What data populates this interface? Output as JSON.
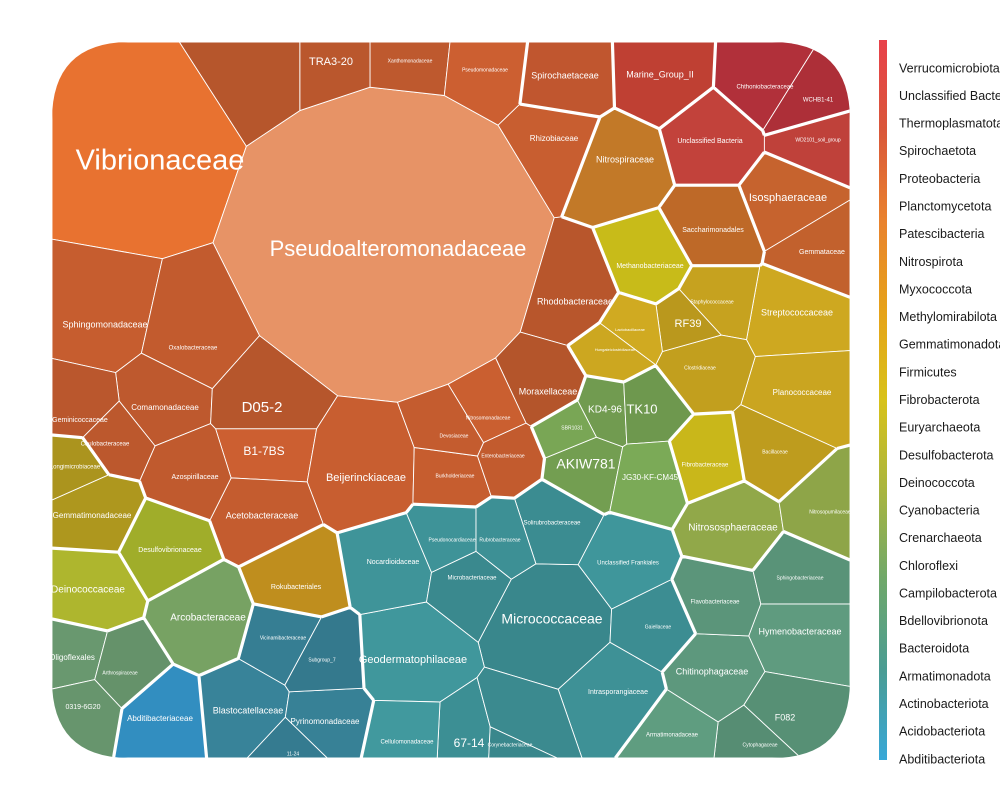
{
  "chart_data": {
    "type": "voronoi-treemap",
    "title": "",
    "legend": {
      "placement": "right",
      "style": "vertical color gradient bar",
      "entries": [
        "Verrucomicrobiota",
        "Unclassified Bacteria",
        "Thermoplasmatota",
        "Spirochaetota",
        "Proteobacteria",
        "Planctomycetota",
        "Patescibacteria",
        "Nitrospirota",
        "Myxococcota",
        "Methylomirabilota",
        "Gemmatimonadota",
        "Firmicutes",
        "Fibrobacterota",
        "Euryarchaeota",
        "Desulfobacterota",
        "Deinococcota",
        "Cyanobacteria",
        "Crenarchaeota",
        "Chloroflexi",
        "Campilobacterota",
        "Bdellovibrionota",
        "Bacteroidota",
        "Armatimonadota",
        "Actinobacteriota",
        "Acidobacteriota",
        "Abditibacteriota"
      ],
      "gradient_colors": [
        "#e8414a",
        "#d9573a",
        "#e9822e",
        "#e6a21a",
        "#d8c21a",
        "#a9b53f",
        "#6fa86a",
        "#4a9c93",
        "#38a8d8"
      ]
    },
    "phyla": [
      {
        "name": "Proteobacteria",
        "color": "#c05a2e",
        "families": [
          {
            "name": "Vibrionaceae",
            "color": "#e87230"
          },
          {
            "name": "Pseudoalteromonadaceae",
            "color": "#e79366"
          },
          {
            "name": "Sphingomonadaceae"
          },
          {
            "name": "Oxalobacteraceae"
          },
          {
            "name": "Comamonadaceae"
          },
          {
            "name": "Geminicoccaceae"
          },
          {
            "name": "D05-2"
          },
          {
            "name": "B1-7BS"
          },
          {
            "name": "Beijerinckiaceae"
          },
          {
            "name": "Acetobacteraceae"
          },
          {
            "name": "Azospirillaceae"
          },
          {
            "name": "Caulobacteraceae"
          },
          {
            "name": "Rhodobacteraceae"
          },
          {
            "name": "Moraxellaceae"
          },
          {
            "name": "Nitrosomonadaceae"
          },
          {
            "name": "Burkholderiaceae"
          },
          {
            "name": "Enterobacteriaceae"
          },
          {
            "name": "Xanthomonadaceae"
          },
          {
            "name": "TRA3-20"
          },
          {
            "name": "Rhizobiaceae"
          }
        ]
      },
      {
        "name": "Spirochaetota",
        "color": "#c0562f",
        "families": [
          {
            "name": "Spirochaetaceae"
          }
        ]
      },
      {
        "name": "Thermoplasmatota",
        "color": "#c34134",
        "families": [
          {
            "name": "Marine_Group_II"
          }
        ]
      },
      {
        "name": "Verrucomicrobiota",
        "color": "#b8323c",
        "families": [
          {
            "name": "Chthoniobacteraceae"
          }
        ]
      },
      {
        "name": "Unclassified Bacteria",
        "color": "#b93f38",
        "families": [
          {
            "name": "Unclassified Bacteria"
          }
        ]
      },
      {
        "name": "Nitrospirota",
        "color": "#c07828",
        "families": [
          {
            "name": "Nitrospiraceae"
          }
        ]
      },
      {
        "name": "Planctomycetota",
        "color": "#c8642e",
        "families": [
          {
            "name": "Isosphaeraceae"
          },
          {
            "name": "Gemmataceae"
          }
        ]
      },
      {
        "name": "Patescibacteria",
        "color": "#c86f2a",
        "families": [
          {
            "name": "Saccharimonadales"
          }
        ]
      },
      {
        "name": "Euryarchaeota",
        "color": "#bdb018",
        "families": [
          {
            "name": "Methanobacteriaceae"
          }
        ]
      },
      {
        "name": "Firmicutes",
        "color": "#c6a21f",
        "families": [
          {
            "name": "Streptococcaceae"
          },
          {
            "name": "Planococcaceae"
          },
          {
            "name": "Staphylococcaceae"
          },
          {
            "name": "Bacillaceae"
          },
          {
            "name": "Clostridiaceae"
          },
          {
            "name": "RF39"
          }
        ]
      },
      {
        "name": "Fibrobacterota",
        "color": "#c7b51a",
        "families": [
          {
            "name": "Fibrobacteraceae"
          }
        ]
      },
      {
        "name": "Chloroflexi",
        "color": "#74a052",
        "families": [
          {
            "name": "AKIW781"
          },
          {
            "name": "KD4-96"
          },
          {
            "name": "TK10"
          },
          {
            "name": "JG30-KF-CM45"
          }
        ]
      },
      {
        "name": "Crenarchaeota",
        "color": "#8ea548",
        "families": [
          {
            "name": "Nitrososphaeraceae"
          }
        ]
      },
      {
        "name": "Gemmatimonadota",
        "color": "#b29a1f",
        "families": [
          {
            "name": "Gemmatimonadaceae"
          },
          {
            "name": "Longimicrobiaceae"
          }
        ]
      },
      {
        "name": "Desulfobacterota",
        "color": "#aab82d",
        "families": [
          {
            "name": "Desulfovibrionaceae"
          }
        ]
      },
      {
        "name": "Deinococcota",
        "color": "#a6ad2c",
        "families": [
          {
            "name": "Deinococcaceae"
          }
        ]
      },
      {
        "name": "Methylomirabilota",
        "color": "#b98a1d",
        "families": [
          {
            "name": "Rokubacteriales"
          }
        ]
      },
      {
        "name": "Campilobacterota",
        "color": "#76a062",
        "families": [
          {
            "name": "Arcobacteraceae"
          }
        ]
      },
      {
        "name": "Cyanobacteria",
        "color": "#6a9a70",
        "families": [
          {
            "name": "Oligoflexales"
          },
          {
            "name": "0319-6G20"
          }
        ]
      },
      {
        "name": "Actinobacteriota",
        "color": "#3d9095",
        "families": [
          {
            "name": "Micrococcaceae"
          },
          {
            "name": "Geodermatophilaceae"
          },
          {
            "name": "Nocardioidaceae"
          },
          {
            "name": "Intrasporangiaceae"
          },
          {
            "name": "67-14"
          },
          {
            "name": "Solirubrobacteraceae"
          },
          {
            "name": "Microbacteriaceae"
          },
          {
            "name": "Cellulomonadaceae"
          },
          {
            "name": "Unclassified Frankiales"
          },
          {
            "name": "Pseudonocardiaceae"
          },
          {
            "name": "Rubrobacteraceae"
          },
          {
            "name": "Gaiellaceae"
          }
        ]
      },
      {
        "name": "Bacteroidota",
        "color": "#5a9479",
        "families": [
          {
            "name": "Hymenobacteraceae"
          },
          {
            "name": "Chitinophagaceae"
          },
          {
            "name": "Flavobacteriaceae"
          },
          {
            "name": "Sphingobacteriaceae"
          },
          {
            "name": "F082"
          }
        ]
      },
      {
        "name": "Acidobacteriota",
        "color": "#367e93",
        "families": [
          {
            "name": "Blastocatellaceae"
          },
          {
            "name": "Pyrinomonadaceae"
          },
          {
            "name": "Vicinamibacteraceae"
          },
          {
            "name": "11-24"
          }
        ]
      },
      {
        "name": "Abditibacteriota",
        "color": "#2f86b5",
        "families": [
          {
            "name": "Abditibacteriaceae"
          }
        ]
      }
    ],
    "visible_labels": [
      "Vibrionaceae",
      "Pseudoalteromonadaceae",
      "Sphingomonadaceae",
      "D05-2",
      "B1-7BS",
      "Beijerinckiaceae",
      "Acetobacteraceae",
      "Rhodobacteraceae",
      "Moraxellaceae",
      "Oxalobacteraceae",
      "Comamonadaceae",
      "Geminicoccaceae",
      "Azospirillaceae",
      "TRA3-20",
      "Spirochaetaceae",
      "Marine_Group_II",
      "Nitrospiraceae",
      "Unclassified Bacteria",
      "Isosphaeraceae",
      "Saccharimonadales",
      "Methanobacteriaceae",
      "Streptococcaceae",
      "Planococcaceae",
      "RF39",
      "TK10",
      "KD4-96",
      "AKIW781",
      "JG30-KF-CM45",
      "Fibrobacteraceae",
      "Nitrososphaeraceae",
      "Gemmatimonadaceae",
      "Desulfovibrionaceae",
      "Deinococcaceae",
      "Rokubacteriales",
      "Arcobacteraceae",
      "Oligoflexales",
      "0319-6G20",
      "Abditibacteriaceae",
      "Blastocatellaceae",
      "Pyrinomonadaceae",
      "Geodermatophilaceae",
      "Micrococcaceae",
      "Nocardioidaceae",
      "Intrasporangiaceae",
      "67-14",
      "Hymenobacteraceae",
      "Chitinophagaceae",
      "F082",
      "Gemmataceae",
      "Rhizobiaceae"
    ]
  }
}
